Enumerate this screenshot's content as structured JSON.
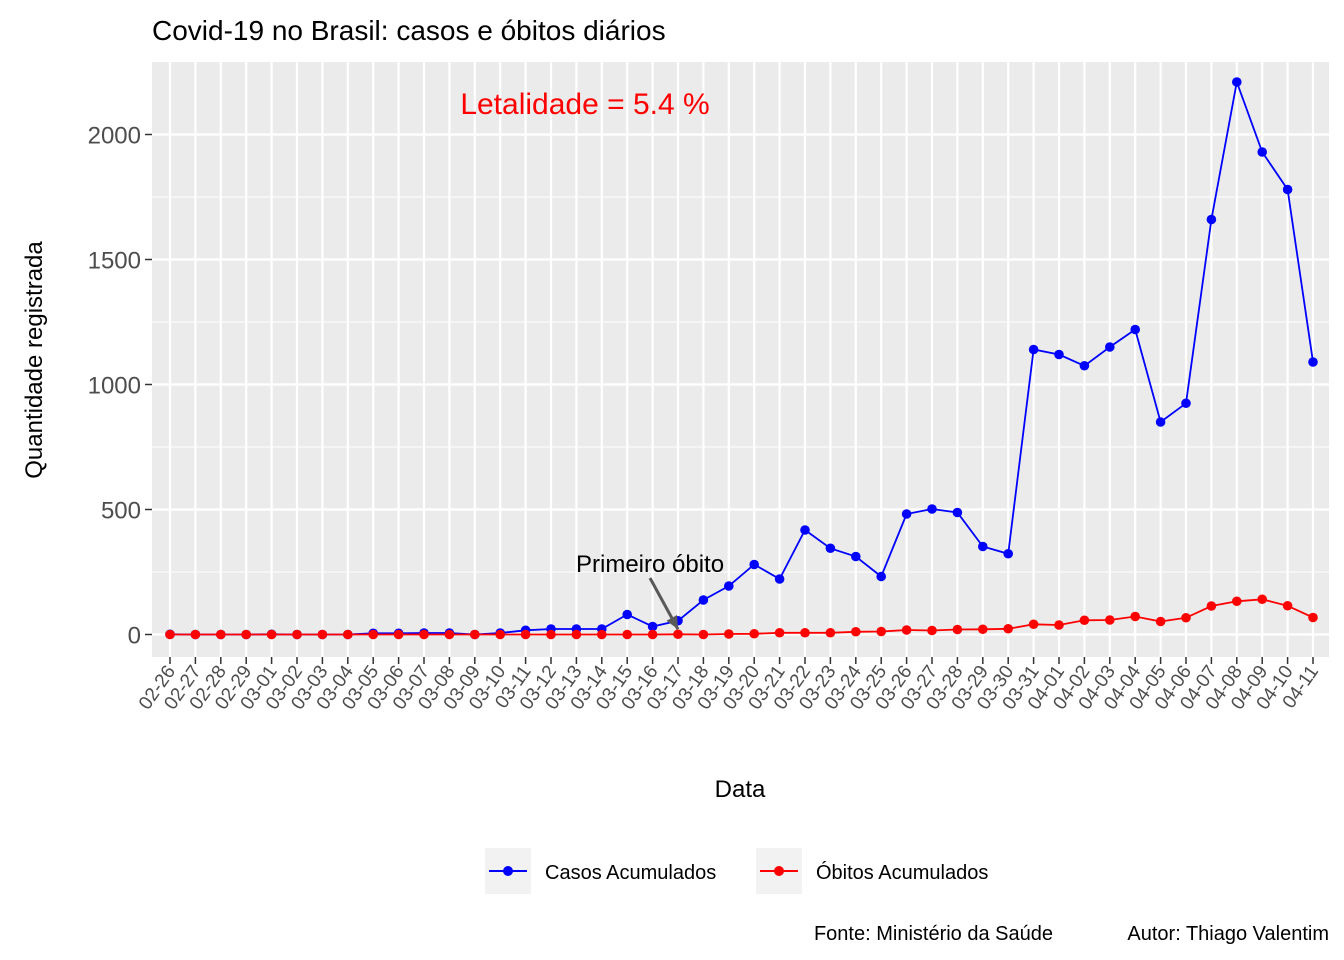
{
  "chart_data": {
    "type": "line",
    "title": "Covid-19 no Brasil: casos e óbitos diários",
    "xlabel": "Data",
    "ylabel": "Quantidade registrada",
    "ylim": [
      -90,
      2290
    ],
    "yticks": [
      0,
      500,
      1000,
      1500,
      2000
    ],
    "grid": true,
    "legend_position": "bottom",
    "categories": [
      "02-26",
      "02-27",
      "02-28",
      "02-29",
      "03-01",
      "03-02",
      "03-03",
      "03-04",
      "03-05",
      "03-06",
      "03-07",
      "03-08",
      "03-09",
      "03-10",
      "03-11",
      "03-12",
      "03-13",
      "03-14",
      "03-15",
      "03-16",
      "03-17",
      "03-18",
      "03-19",
      "03-20",
      "03-21",
      "03-22",
      "03-23",
      "03-24",
      "03-25",
      "03-26",
      "03-27",
      "03-28",
      "03-29",
      "03-30",
      "03-31",
      "04-01",
      "04-02",
      "04-03",
      "04-04",
      "04-05",
      "04-06",
      "04-07",
      "04-08",
      "04-09",
      "04-10",
      "04-11"
    ],
    "series": [
      {
        "name": "Casos Acumulados",
        "color": "#0000FF",
        "values": [
          1,
          0,
          0,
          0,
          1,
          0,
          0,
          0,
          5,
          5,
          6,
          6,
          0,
          6,
          17,
          22,
          22,
          22,
          80,
          32,
          55,
          138,
          194,
          280,
          222,
          418,
          345,
          312,
          232,
          482,
          502,
          488,
          352,
          323,
          1140,
          1120,
          1075,
          1150,
          1220,
          850,
          925,
          1660,
          2210,
          1930,
          1780,
          1090
        ]
      },
      {
        "name": "Óbitos Acumulados",
        "color": "#FF0000",
        "values": [
          0,
          0,
          0,
          0,
          0,
          0,
          0,
          0,
          0,
          0,
          0,
          0,
          0,
          0,
          0,
          0,
          0,
          0,
          0,
          0,
          1,
          0,
          2,
          3,
          7,
          7,
          7,
          11,
          12,
          18,
          16,
          20,
          21,
          23,
          41,
          38,
          57,
          58,
          72,
          52,
          67,
          114,
          133,
          141,
          115,
          68
        ]
      }
    ],
    "annotations": {
      "lethality": "Letalidade = 5.4 %",
      "first_death": "Primeiro óbito"
    },
    "caption": {
      "source": "Fonte: Ministério da Saúde",
      "author": "Autor: Thiago Valentim"
    },
    "colors": {
      "panel": "#EBEBEB",
      "grid": "#FFFFFF",
      "lethality_text": "#FF0000",
      "arrow": "#595959"
    }
  }
}
